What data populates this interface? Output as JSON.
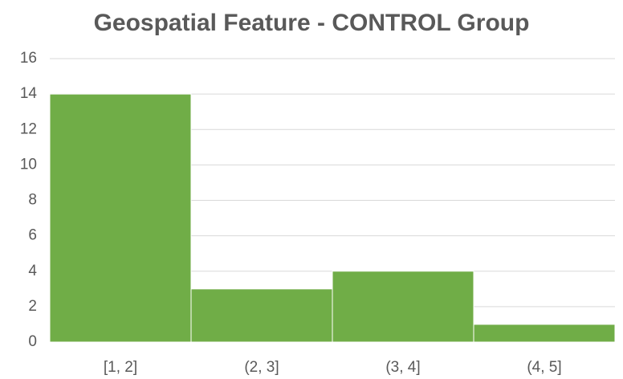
{
  "chart_data": {
    "type": "bar",
    "title": "Geospatial Feature - CONTROL Group",
    "categories": [
      "[1, 2]",
      "(2, 3]",
      "(3, 4]",
      "(4, 5]"
    ],
    "values": [
      14,
      3,
      4,
      1
    ],
    "color": "#70ad47",
    "ylim": [
      0,
      16
    ],
    "yticks": [
      0,
      2,
      4,
      6,
      8,
      10,
      12,
      14,
      16
    ],
    "grid": true
  }
}
